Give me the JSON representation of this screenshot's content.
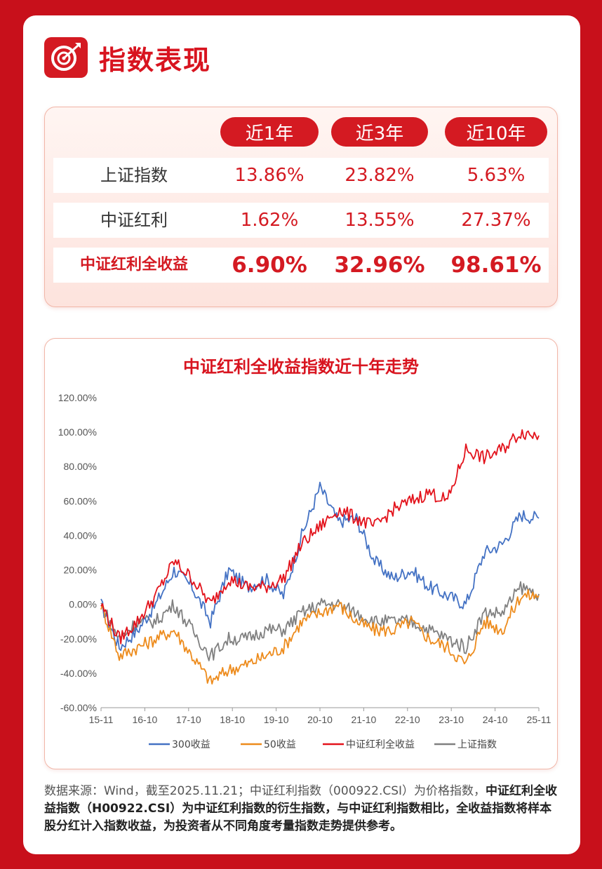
{
  "header": {
    "title": "指数表现"
  },
  "table": {
    "periods": [
      "近1年",
      "近3年",
      "近10年"
    ],
    "rows": [
      {
        "name": "上证指数",
        "values": [
          "13.86%",
          "23.82%",
          "5.63%"
        ]
      },
      {
        "name": "中证红利",
        "values": [
          "1.62%",
          "13.55%",
          "27.37%"
        ]
      },
      {
        "name": "中证红利全收益",
        "values": [
          "6.90%",
          "32.96%",
          "98.61%"
        ]
      }
    ]
  },
  "chart_data": {
    "type": "line",
    "title": "中证红利全收益指数近十年走势",
    "x_ticks": [
      "15-11",
      "16-10",
      "17-10",
      "18-10",
      "19-10",
      "20-10",
      "21-10",
      "22-10",
      "23-10",
      "24-10",
      "25-11"
    ],
    "y_ticks": [
      "120.00%",
      "100.00%",
      "80.00%",
      "60.00%",
      "40.00%",
      "20.00%",
      "0.00%",
      "-20.00%",
      "-40.00%",
      "-60.00%"
    ],
    "ylim": [
      -60,
      120
    ],
    "legend_position": "bottom",
    "series": [
      {
        "name": "300收益",
        "color": "#4472c4",
        "values": [
          0,
          -25,
          -15,
          0,
          20,
          10,
          -10,
          20,
          10,
          15,
          5,
          40,
          68,
          48,
          50,
          25,
          15,
          20,
          10,
          5,
          0,
          30,
          35,
          52,
          50
        ]
      },
      {
        "name": "50收益",
        "color": "#ed8b1c",
        "values": [
          0,
          -30,
          -25,
          -20,
          -15,
          -30,
          -45,
          -38,
          -35,
          -30,
          -25,
          -10,
          -5,
          0,
          -10,
          -15,
          -15,
          -10,
          -20,
          -25,
          -35,
          -10,
          -15,
          5,
          5
        ]
      },
      {
        "name": "中证红利全收益",
        "color": "#e3131c",
        "values": [
          0,
          -20,
          -10,
          5,
          25,
          15,
          0,
          15,
          10,
          10,
          15,
          35,
          45,
          55,
          50,
          45,
          55,
          60,
          65,
          60,
          90,
          85,
          90,
          100,
          98
        ]
      },
      {
        "name": "上证指数",
        "color": "#808080",
        "values": [
          0,
          -20,
          -10,
          -10,
          0,
          -15,
          -30,
          -20,
          -20,
          -15,
          -15,
          -5,
          0,
          0,
          -5,
          -10,
          -10,
          -10,
          -15,
          -20,
          -25,
          -5,
          -5,
          10,
          6
        ]
      }
    ]
  },
  "note": {
    "part1": "数据来源：Wind，截至2025.11.21；中证红利指数（000922.CSI）为价格指数，",
    "part2": "中证红利全收益指数（H00922.CSI）为中证红利指数的衍生指数，与中证红利指数相比，全收益指数将样本股分红计入指数收益，为投资者从不同角度考量指数走势提供参考。"
  }
}
